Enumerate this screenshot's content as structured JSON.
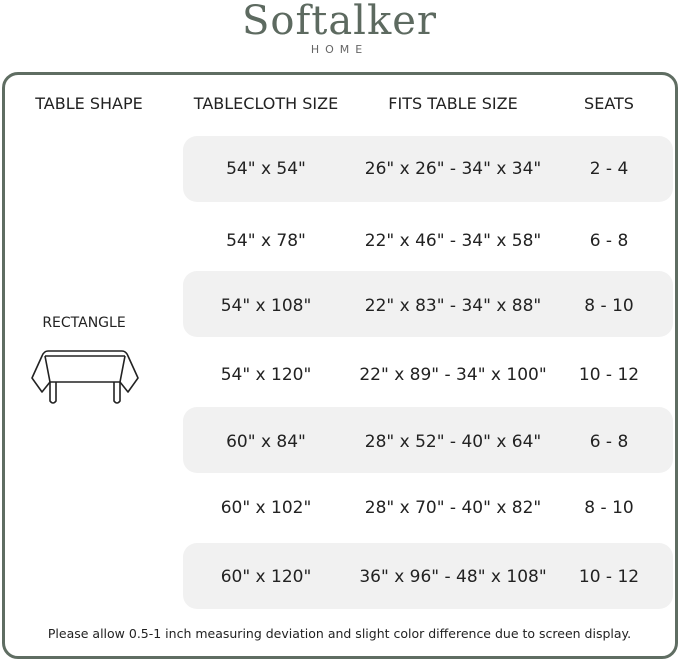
{
  "brand": {
    "name": "Softalker",
    "sub": "HOME"
  },
  "headers": [
    "TABLE SHAPE",
    "TABLECLOTH SIZE",
    "FITS TABLE SIZE",
    "SEATS"
  ],
  "shape": {
    "label": "RECTANGLE",
    "icon": "rectangle-table-icon"
  },
  "rows": [
    {
      "size": "54\" x 54\"",
      "fits": "26\" x 26\" - 34\" x 34\"",
      "seats": "2 - 4"
    },
    {
      "size": "54\" x 78\"",
      "fits": "22\" x 46\" - 34\" x 58\"",
      "seats": "6 - 8"
    },
    {
      "size": "54\" x 108\"",
      "fits": "22\" x 83\" - 34\" x 88\"",
      "seats": "8 - 10"
    },
    {
      "size": "54\" x 120\"",
      "fits": "22\" x 89\" - 34\" x 100\"",
      "seats": "10 - 12"
    },
    {
      "size": "60\" x 84\"",
      "fits": "28\" x 52\" - 40\" x 64\"",
      "seats": "6 - 8"
    },
    {
      "size": "60\" x 102\"",
      "fits": "28\" x 70\" - 40\" x 82\"",
      "seats": "8 - 10"
    },
    {
      "size": "60\" x 120\"",
      "fits": "36\" x 96\" - 48\" x 108\"",
      "seats": "10 - 12"
    }
  ],
  "note": "Please allow 0.5-1 inch measuring deviation and slight color difference due to screen display.",
  "colors": {
    "frame": "#5f6d62",
    "band": "#f1f1f1"
  }
}
